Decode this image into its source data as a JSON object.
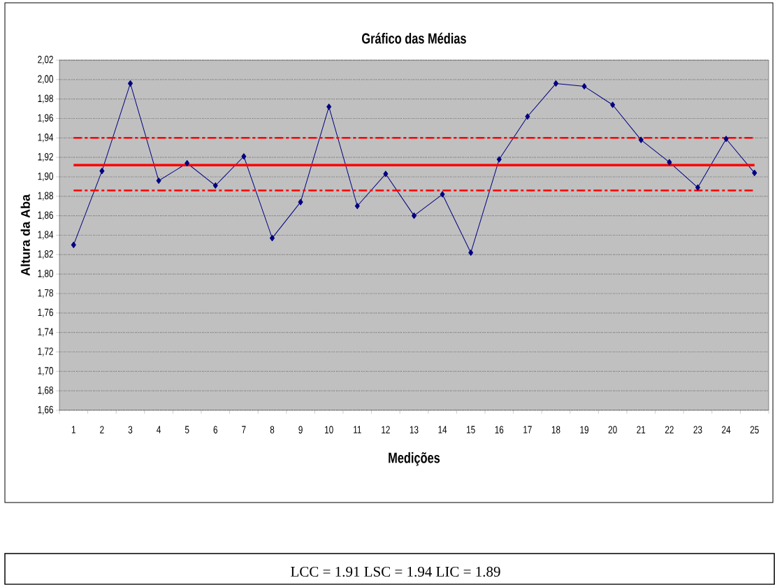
{
  "chart_data": {
    "type": "line",
    "title": "Gráfico das Médias",
    "xlabel": "Medições",
    "ylabel": "Altura da Aba",
    "categories": [
      "1",
      "2",
      "3",
      "4",
      "5",
      "6",
      "7",
      "8",
      "9",
      "10",
      "11",
      "12",
      "13",
      "14",
      "15",
      "16",
      "17",
      "18",
      "19",
      "20",
      "21",
      "22",
      "23",
      "24",
      "25"
    ],
    "series": [
      {
        "color": "#000080",
        "values": [
          1.83,
          1.906,
          1.996,
          1.896,
          1.914,
          1.891,
          1.921,
          1.837,
          1.874,
          1.972,
          1.87,
          1.903,
          1.86,
          1.882,
          1.822,
          1.918,
          1.962,
          1.996,
          1.993,
          1.974,
          1.938,
          1.915,
          1.889,
          1.939,
          1.904
        ]
      }
    ],
    "ylim": [
      1.66,
      2.02
    ],
    "yticks": [
      {
        "value": 1.66,
        "label": "1,66"
      },
      {
        "value": 1.68,
        "label": "1,68"
      },
      {
        "value": 1.7,
        "label": "1,70"
      },
      {
        "value": 1.72,
        "label": "1,72"
      },
      {
        "value": 1.74,
        "label": "1,74"
      },
      {
        "value": 1.76,
        "label": "1,76"
      },
      {
        "value": 1.78,
        "label": "1,78"
      },
      {
        "value": 1.8,
        "label": "1,80"
      },
      {
        "value": 1.82,
        "label": "1,82"
      },
      {
        "value": 1.84,
        "label": "1,84"
      },
      {
        "value": 1.86,
        "label": "1,86"
      },
      {
        "value": 1.88,
        "label": "1,88"
      },
      {
        "value": 1.9,
        "label": "1,90"
      },
      {
        "value": 1.92,
        "label": "1,92"
      },
      {
        "value": 1.94,
        "label": "1,94"
      },
      {
        "value": 1.96,
        "label": "1,96"
      },
      {
        "value": 1.98,
        "label": "1,98"
      },
      {
        "value": 2.0,
        "label": "2,00"
      },
      {
        "value": 2.02,
        "label": "2,02"
      }
    ],
    "ref_lines": [
      {
        "axis": "y",
        "value": 1.912,
        "color": "#ff0000",
        "line_style": "solid"
      },
      {
        "axis": "y",
        "value": 1.94,
        "color": "#ff0000",
        "line_style": "dashdot"
      },
      {
        "axis": "y",
        "value": 1.886,
        "color": "#ff0000",
        "line_style": "dashdot"
      }
    ],
    "grid": "y",
    "marker": "diamond",
    "line_style": "solid",
    "annotations": [
      "LCC = 1.91  LSC = 1.94  LIC = 1.89"
    ]
  }
}
